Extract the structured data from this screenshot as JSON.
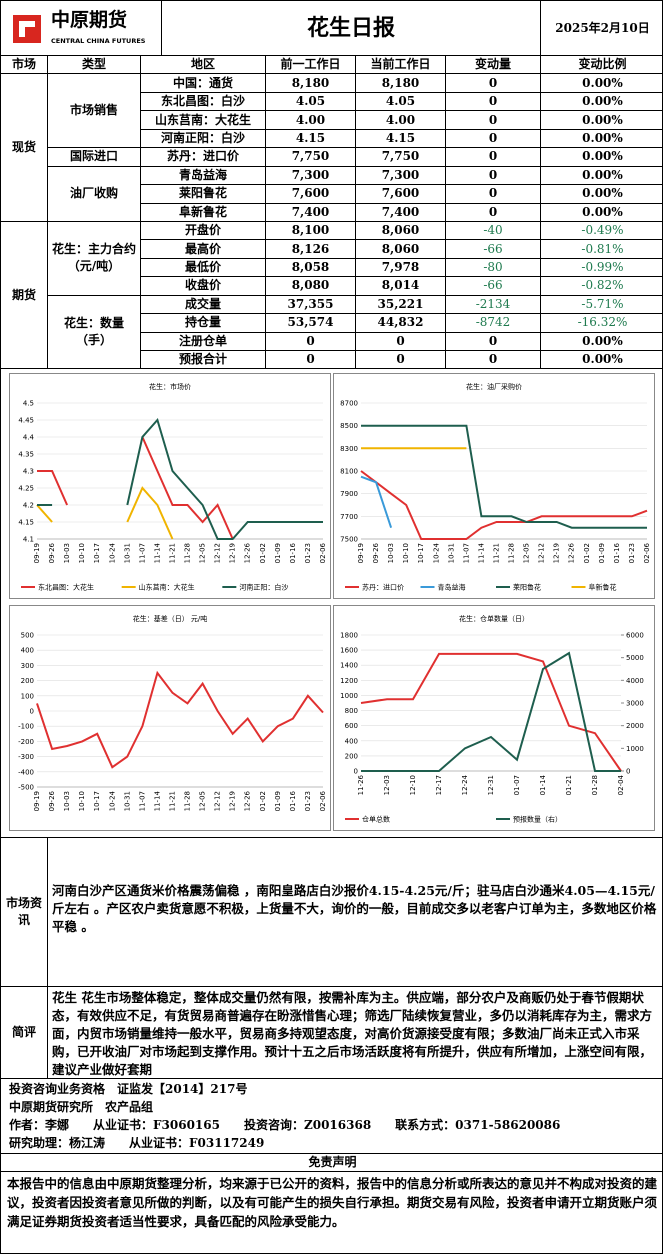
{
  "header": {
    "logo_cn": "中原期货",
    "logo_en": "CENTRAL CHINA FUTURES",
    "title": "花生日报",
    "date": "2025年2月10日"
  },
  "table": {
    "columns": [
      "市场",
      "类型",
      "地区",
      "前一工作日",
      "当前工作日",
      "变动量",
      "变动比例"
    ],
    "sections": [
      {
        "market": "现货",
        "groups": [
          {
            "type": "市场销售",
            "rows": [
              [
                "中国：通货",
                "8,180",
                "8,180",
                "0",
                "0.00%"
              ],
              [
                "东北昌图：白沙",
                "4.05",
                "4.05",
                "0",
                "0.00%"
              ],
              [
                "山东莒南：大花生",
                "4.00",
                "4.00",
                "0",
                "0.00%"
              ],
              [
                "河南正阳：白沙",
                "4.15",
                "4.15",
                "0",
                "0.00%"
              ]
            ]
          },
          {
            "type": "国际进口",
            "rows": [
              [
                "苏丹：进口价",
                "7,750",
                "7,750",
                "0",
                "0.00%"
              ]
            ]
          },
          {
            "type": "油厂收购",
            "rows": [
              [
                "青岛益海",
                "7,300",
                "7,300",
                "0",
                "0.00%"
              ],
              [
                "莱阳鲁花",
                "7,600",
                "7,600",
                "0",
                "0.00%"
              ],
              [
                "阜新鲁花",
                "7,400",
                "7,400",
                "0",
                "0.00%"
              ]
            ]
          }
        ]
      },
      {
        "market": "期货",
        "groups": [
          {
            "type": "花生：主力合约（元/吨）",
            "rows": [
              [
                "开盘价",
                "8,100",
                "8,060",
                "-40",
                "-0.49%"
              ],
              [
                "最高价",
                "8,126",
                "8,060",
                "-66",
                "-0.81%"
              ],
              [
                "最低价",
                "8,058",
                "7,978",
                "-80",
                "-0.99%"
              ],
              [
                "收盘价",
                "8,080",
                "8,014",
                "-66",
                "-0.82%"
              ]
            ]
          },
          {
            "type": "花生：数量（手）",
            "rows": [
              [
                "成交量",
                "37,355",
                "35,221",
                "-2134",
                "-5.71%"
              ],
              [
                "持仓量",
                "53,574",
                "44,832",
                "-8742",
                "-16.32%"
              ],
              [
                "注册仓单",
                "0",
                "0",
                "0",
                "0.00%"
              ],
              [
                "预报合计",
                "0",
                "0",
                "0",
                "0.00%"
              ]
            ]
          }
        ]
      }
    ]
  },
  "chart_data": [
    {
      "type": "line",
      "title": "花生：市场价",
      "categories": [
        "09-19",
        "09-26",
        "10-03",
        "10-10",
        "10-17",
        "10-24",
        "10-31",
        "11-07",
        "11-14",
        "11-21",
        "11-28",
        "12-05",
        "12-12",
        "12-19",
        "12-26",
        "01-02",
        "01-09",
        "01-16",
        "01-23",
        "02-06"
      ],
      "ylim": [
        4.1,
        4.5
      ],
      "yticks": [
        4.1,
        4.15,
        4.2,
        4.25,
        4.3,
        4.35,
        4.4,
        4.45,
        4.5
      ],
      "series": [
        {
          "name": "东北昌图：大花生",
          "color": "#e03030",
          "values": [
            4.3,
            4.3,
            4.2,
            null,
            null,
            null,
            null,
            4.4,
            4.3,
            4.2,
            4.2,
            4.15,
            4.2,
            4.1,
            null,
            null,
            null,
            null,
            null,
            null
          ]
        },
        {
          "name": "山东莒南：大花生",
          "color": "#f0b400",
          "values": [
            4.2,
            4.15,
            null,
            null,
            null,
            null,
            4.15,
            4.25,
            4.2,
            4.1,
            null,
            null,
            null,
            null,
            null,
            null,
            null,
            null,
            null,
            null
          ]
        },
        {
          "name": "河南正阳：白沙",
          "color": "#1e5e4e",
          "values": [
            4.2,
            4.2,
            null,
            null,
            null,
            null,
            4.2,
            4.4,
            4.45,
            4.3,
            4.25,
            4.2,
            4.1,
            4.1,
            4.15,
            4.15,
            4.15,
            4.15,
            4.15,
            4.15
          ]
        }
      ]
    },
    {
      "type": "line",
      "title": "花生：油厂采购价",
      "categories": [
        "09-19",
        "09-26",
        "10-03",
        "10-10",
        "10-17",
        "10-24",
        "10-31",
        "11-07",
        "11-14",
        "11-21",
        "11-28",
        "12-05",
        "12-12",
        "12-19",
        "12-26",
        "01-02",
        "01-09",
        "01-16",
        "01-23",
        "02-06"
      ],
      "ylim": [
        7500,
        8700
      ],
      "yticks": [
        7500,
        7700,
        7900,
        8100,
        8300,
        8500,
        8700
      ],
      "series": [
        {
          "name": "苏丹：进口价",
          "color": "#e03030",
          "values": [
            8100,
            8000,
            7900,
            7800,
            7500,
            7500,
            7500,
            7500,
            7600,
            7650,
            7650,
            7650,
            7700,
            7700,
            7700,
            7700,
            7700,
            7700,
            7700,
            7750
          ]
        },
        {
          "name": "青岛益海",
          "color": "#3a9ad9",
          "values": [
            8050,
            8000,
            7600,
            null,
            null,
            null,
            null,
            null,
            null,
            null,
            null,
            null,
            null,
            null,
            null,
            null,
            null,
            null,
            null,
            null
          ]
        },
        {
          "name": "莱阳鲁花",
          "color": "#1e5e4e",
          "values": [
            8500,
            8500,
            8500,
            8500,
            8500,
            8500,
            8500,
            8500,
            7700,
            7700,
            7700,
            7650,
            7650,
            7650,
            7600,
            7600,
            7600,
            7600,
            7600,
            7600
          ]
        },
        {
          "name": "阜新鲁花",
          "color": "#f0b400",
          "values": [
            8300,
            8300,
            8300,
            8300,
            8300,
            8300,
            8300,
            8300,
            null,
            null,
            null,
            null,
            null,
            null,
            null,
            null,
            null,
            null,
            null,
            null
          ]
        }
      ]
    },
    {
      "type": "line",
      "title": "花生：基差（日） 元/吨",
      "categories": [
        "09-19",
        "09-26",
        "10-03",
        "10-10",
        "10-17",
        "10-24",
        "10-31",
        "11-07",
        "11-14",
        "11-21",
        "11-28",
        "12-05",
        "12-12",
        "12-19",
        "12-26",
        "01-02",
        "01-09",
        "01-16",
        "01-23",
        "02-06"
      ],
      "ylim": [
        -500,
        500
      ],
      "yticks": [
        -500,
        -400,
        -300,
        -200,
        -100,
        0,
        100,
        200,
        300,
        400,
        500
      ],
      "series": [
        {
          "color": "#e03030",
          "values": [
            50,
            -250,
            -230,
            -200,
            -150,
            -370,
            -300,
            -100,
            250,
            120,
            50,
            180,
            0,
            -150,
            -50,
            -200,
            -100,
            -50,
            100,
            -10
          ]
        }
      ]
    },
    {
      "type": "line",
      "title": "花生：仓单数量（日）",
      "categories": [
        "11-26",
        "12-03",
        "12-10",
        "12-17",
        "12-24",
        "12-31",
        "01-07",
        "01-14",
        "01-21",
        "01-28",
        "02-04"
      ],
      "ylim": [
        0,
        1800
      ],
      "yticks": [
        0,
        200,
        400,
        600,
        800,
        1000,
        1200,
        1400,
        1600,
        1800
      ],
      "y2lim": [
        0,
        6000
      ],
      "y2ticks": [
        0,
        1000,
        2000,
        3000,
        4000,
        5000,
        6000
      ],
      "series": [
        {
          "name": "仓单总数",
          "color": "#e03030",
          "values": [
            900,
            950,
            950,
            1550,
            1550,
            1550,
            1550,
            1450,
            600,
            500,
            0
          ]
        },
        {
          "name": "预报数量（右）",
          "color": "#1e5e4e",
          "axis": "y2",
          "values": [
            0,
            0,
            0,
            0,
            1000,
            1500,
            500,
            4500,
            5200,
            0,
            0
          ]
        }
      ]
    }
  ],
  "info": {
    "label": "市场资讯",
    "text": "河南白沙产区通货米价格震荡偏稳 ，南阳皇路店白沙报价4.15-4.25元/斤；驻马店白沙通米4.05—4.15元/斤左右 。产区农户卖货意愿不积极，上货量不大，询价的一般，目前成交多以老客户订单为主，多数地区价格平稳 。"
  },
  "review": {
    "label": "简评",
    "text": "花生 花生市场整体稳定，整体成交量仍然有限，按需补库为主。供应端，部分农户及商贩仍处于春节假期状态，有效供应不足，有货贸易商普遍存在盼涨惜售心理；筛选厂陆续恢复营业，多仍以消耗库存为主，需求方面，内贸市场销量维持一般水平，贸易商多持观望态度，对高价货源接受度有限；多数油厂尚未正式入市采购，已开收油厂对市场起到支撑作用。预计十五之后市场活跃度将有所提升，供应有所增加，上涨空间有限，建议产业做好套期"
  },
  "credits": [
    "投资咨询业务资格　证监发【2014】217号",
    "中原期货研究所　农产品组",
    "作者：李娜　　从业证书：F3060165　　投资咨询：Z0016368　　联系方式：0371-58620086",
    "研究助理：杨江涛　　从业证书：F03117249"
  ],
  "disclaimer": {
    "title": "免责声明",
    "text": "本报告中的信息由中原期货整理分析，均来源于已公开的资料，报告中的信息分析或所表达的意见并不构成对投资的建议，投资者因投资者意见所做的判断，以及有可能产生的损失自行承担。期货交易有风险，投资者申请开立期货账户须满足证券期货投资者适当性要求，具备匹配的风险承受能力。"
  }
}
